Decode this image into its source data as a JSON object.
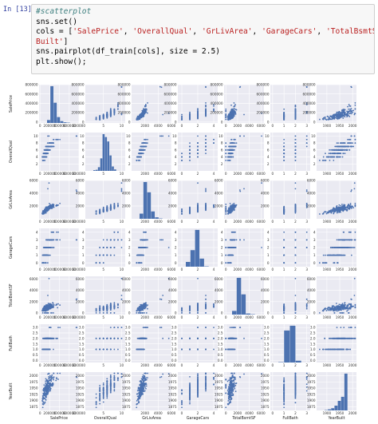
{
  "notebook": {
    "prompt": "In [13]:",
    "code_lines": [
      {
        "parts": [
          {
            "t": "#scatterplot",
            "c": "cm"
          }
        ]
      },
      {
        "parts": [
          {
            "t": "sns.set()",
            "c": ""
          }
        ]
      },
      {
        "parts": [
          {
            "t": "cols = [",
            "c": ""
          },
          {
            "t": "'SalePrice'",
            "c": "st"
          },
          {
            "t": ", ",
            "c": ""
          },
          {
            "t": "'OverallQual'",
            "c": "st"
          },
          {
            "t": ", ",
            "c": ""
          },
          {
            "t": "'GrLivArea'",
            "c": "st"
          },
          {
            "t": ", ",
            "c": ""
          },
          {
            "t": "'GarageCars'",
            "c": "st"
          },
          {
            "t": ", ",
            "c": ""
          },
          {
            "t": "'TotalBsmtSF'",
            "c": "st"
          },
          {
            "t": ", ",
            "c": ""
          },
          {
            "t": "'FullBath'",
            "c": "st"
          },
          {
            "t": ", ",
            "c": ""
          },
          {
            "t": "'Year",
            "c": "st"
          }
        ]
      },
      {
        "parts": [
          {
            "t": "Built'",
            "c": "st"
          },
          {
            "t": "]",
            "c": ""
          }
        ]
      },
      {
        "parts": [
          {
            "t": "sns.pairplot(df_train[cols], size = 2.5)",
            "c": ""
          }
        ]
      },
      {
        "parts": [
          {
            "t": "plt.show();",
            "c": ""
          }
        ]
      }
    ]
  },
  "chart_data": {
    "type": "scatter",
    "subtype": "pairplot",
    "variables": [
      "SalePrice",
      "OverallQual",
      "GrLivArea",
      "GarageCars",
      "TotalBsmtSF",
      "FullBath",
      "YearBuilt"
    ],
    "axis_ticks": {
      "SalePrice": [
        "0",
        "200000",
        "400000",
        "600000",
        "800000"
      ],
      "OverallQual": [
        "2",
        "4",
        "6",
        "8",
        "10"
      ],
      "GrLivArea": [
        "2000",
        "4000",
        "6000"
      ],
      "GarageCars": [
        "0",
        "1",
        "2",
        "3",
        "4"
      ],
      "TotalBsmtSF": [
        "0",
        "2000",
        "4000",
        "6000"
      ],
      "FullBath": [
        "0.0",
        "0.5",
        "1.0",
        "1.5",
        "2.0",
        "2.5",
        "3.0"
      ],
      "YearBuilt": [
        "1875",
        "1900",
        "1925",
        "1950",
        "1975",
        "2000"
      ]
    },
    "x_ticks_shown": {
      "SalePrice": [
        "0",
        "200000",
        "400000",
        "600000",
        "800000"
      ],
      "OverallQual": [
        "5",
        "10"
      ],
      "GrLivArea": [
        "2000",
        "4000",
        "6000"
      ],
      "GarageCars": [
        "0",
        "2",
        "4"
      ],
      "TotalBsmtSF": [
        "0",
        "2000",
        "4000",
        "6000"
      ],
      "FullBath": [
        "0",
        "1",
        "2",
        "3"
      ],
      "YearBuilt": [
        "1900",
        "1950",
        "2000"
      ]
    },
    "ranges": {
      "SalePrice": [
        -20000,
        800000
      ],
      "OverallQual": [
        0,
        11
      ],
      "GrLivArea": [
        0,
        6000
      ],
      "GarageCars": [
        -0.5,
        4.5
      ],
      "TotalBsmtSF": [
        -300,
        6500
      ],
      "FullBath": [
        -0.2,
        3.3
      ],
      "YearBuilt": [
        1860,
        2015
      ]
    },
    "histograms": {
      "SalePrice": [
        0.08,
        1.0,
        0.55,
        0.16,
        0.05,
        0.02,
        0.01
      ],
      "OverallQual": [
        0.02,
        0.03,
        0.1,
        0.34,
        1.0,
        0.92,
        0.8,
        0.42,
        0.12,
        0.04
      ],
      "GrLivArea": [
        0.14,
        1.0,
        0.72,
        0.2,
        0.04,
        0.01
      ],
      "GarageCars": [
        0.13,
        0.45,
        1.0,
        0.22,
        0.01
      ],
      "TotalBsmtSF": [
        0.1,
        1.0,
        0.55,
        0.03,
        0.01
      ],
      "FullBath": [
        0.01,
        0.87,
        1.0,
        0.05
      ],
      "YearBuilt": [
        0.01,
        0.03,
        0.06,
        0.13,
        0.26,
        0.37,
        1.0
      ]
    },
    "grid": true,
    "style": "seaborn-darkgrid",
    "point_color": "#4c72b0",
    "bar_color": "#4c72b0",
    "panel_bg": "#eaeaf2",
    "grid_color": "#ffffff"
  }
}
